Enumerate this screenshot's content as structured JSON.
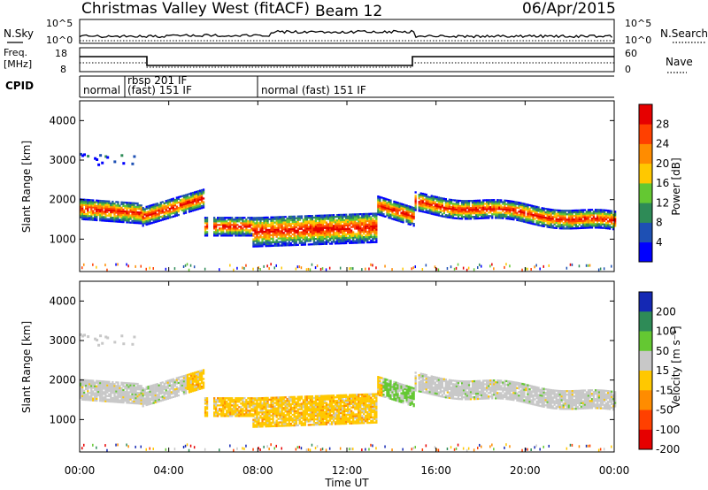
{
  "header": {
    "title": "Christmas Valley West (fitACF)",
    "beam": "Beam 12",
    "date": "06/Apr/2015"
  },
  "summary_panels": {
    "nsky_label": "N.Sky",
    "nsearch_label": "N.Search",
    "nsky_ticks": [
      "10^5",
      "10^0"
    ],
    "freq_label_1": "Freq.",
    "freq_label_2": "[MHz]",
    "freq_ticks_left": [
      "18",
      "8"
    ],
    "nave_label": "Nave",
    "nave_ticks_right": [
      "60",
      "0"
    ],
    "nsearch_ticks_right": [
      "10^5",
      "10^0"
    ]
  },
  "cpid": {
    "label": "CPID",
    "segments": [
      {
        "start_hour": 0.0,
        "text": "normal"
      },
      {
        "start_hour": 2.0,
        "text": "rbsp 201 IF"
      },
      {
        "start_hour": 2.0,
        "text": "(fast) 151 IF"
      },
      {
        "start_hour": 8.0,
        "text": "normal (fast) 151 IF"
      }
    ]
  },
  "chart_data": [
    {
      "type": "heatmap",
      "name": "Power",
      "xlabel": "",
      "ylabel": "Slant Range [km]",
      "xlim": [
        0,
        24
      ],
      "ylim": [
        180,
        4500
      ],
      "yticks": [
        1000,
        2000,
        3000,
        4000
      ],
      "colorbar": {
        "label": "Power [dB]",
        "ticks": [
          "4",
          "8",
          "12",
          "16",
          "20",
          "24",
          "28"
        ],
        "colors": [
          "#0000ff",
          "#1e50b4",
          "#2e8b57",
          "#64c832",
          "#ffc800",
          "#ff8c00",
          "#ff4000",
          "#e60000"
        ]
      }
    },
    {
      "type": "heatmap",
      "name": "Velocity",
      "xlabel": "Time UT",
      "ylabel": "Slant Range [km]",
      "xlim": [
        0,
        24
      ],
      "ylim": [
        180,
        4500
      ],
      "yticks": [
        1000,
        2000,
        3000,
        4000
      ],
      "xticks": [
        "00:00",
        "04:00",
        "08:00",
        "12:00",
        "16:00",
        "20:00",
        "00:00"
      ],
      "colorbar": {
        "label": "Velocity [m s⁻¹]",
        "ticks": [
          "200",
          "100",
          "50",
          "15",
          "-15",
          "-50",
          "-100",
          "-200"
        ],
        "colors": [
          "#1428b4",
          "#2e8b57",
          "#64c832",
          "#c8c8c8",
          "#ffc800",
          "#ff8c00",
          "#ff4000",
          "#e60000"
        ]
      }
    }
  ],
  "colors": {
    "axis": "#000000",
    "background": "#ffffff"
  }
}
